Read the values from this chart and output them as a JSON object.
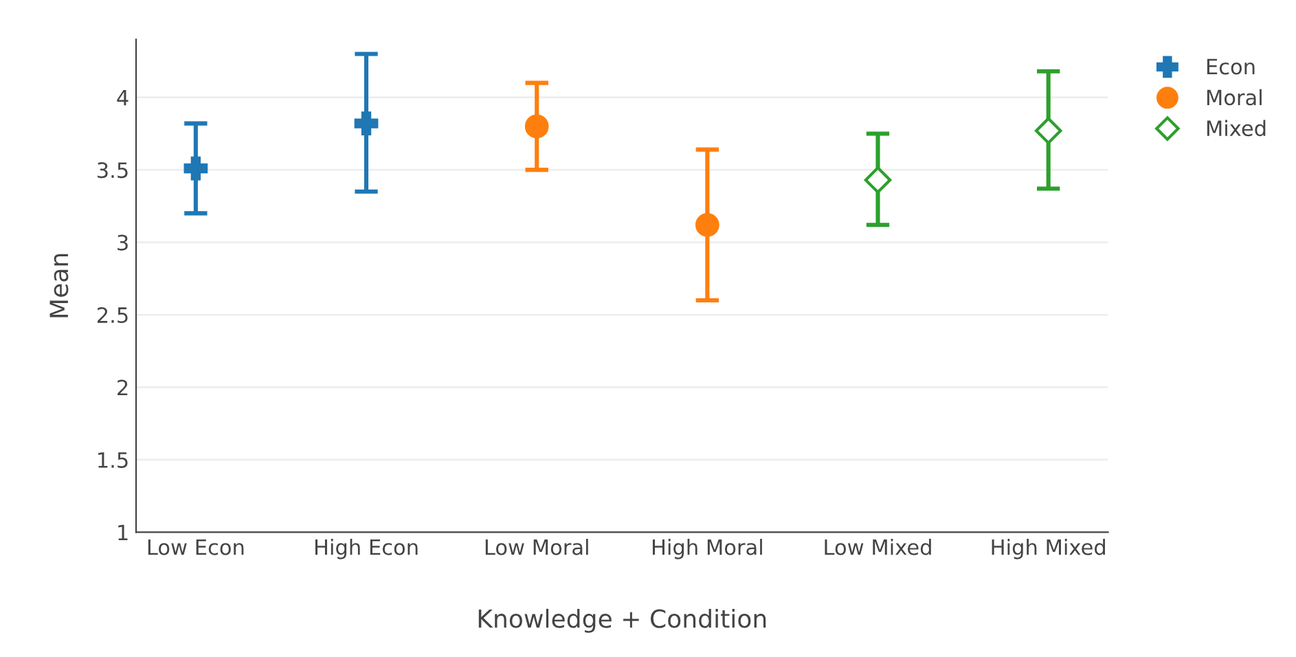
{
  "chart_data": {
    "type": "scatter",
    "xlabel": "Knowledge + Condition",
    "ylabel": "Mean",
    "categories": [
      "Low Econ",
      "High Econ",
      "Low Moral",
      "High Moral",
      "Low Mixed",
      "High Mixed"
    ],
    "series": [
      {
        "name": "Econ",
        "color": "#1f77b4",
        "marker": "cross",
        "values": [
          3.51,
          3.82,
          null,
          null,
          null,
          null
        ],
        "errors": [
          [
            3.2,
            3.82
          ],
          [
            3.35,
            4.3
          ],
          null,
          null,
          null,
          null
        ]
      },
      {
        "name": "Moral",
        "color": "#ff7f0e",
        "marker": "circle",
        "values": [
          null,
          null,
          3.8,
          3.12,
          null,
          null
        ],
        "errors": [
          null,
          null,
          [
            3.5,
            4.1
          ],
          [
            2.6,
            3.64
          ],
          null,
          null
        ]
      },
      {
        "name": "Mixed",
        "color": "#2ca02c",
        "marker": "diamond",
        "values": [
          null,
          null,
          null,
          null,
          3.43,
          3.77
        ],
        "errors": [
          null,
          null,
          null,
          null,
          [
            3.12,
            3.75
          ],
          [
            3.37,
            4.18
          ]
        ]
      }
    ],
    "ylim": [
      1,
      4.4
    ],
    "yticks": [
      1,
      1.5,
      2,
      2.5,
      3,
      3.5,
      4
    ],
    "grid": "y",
    "legend": "top right"
  }
}
